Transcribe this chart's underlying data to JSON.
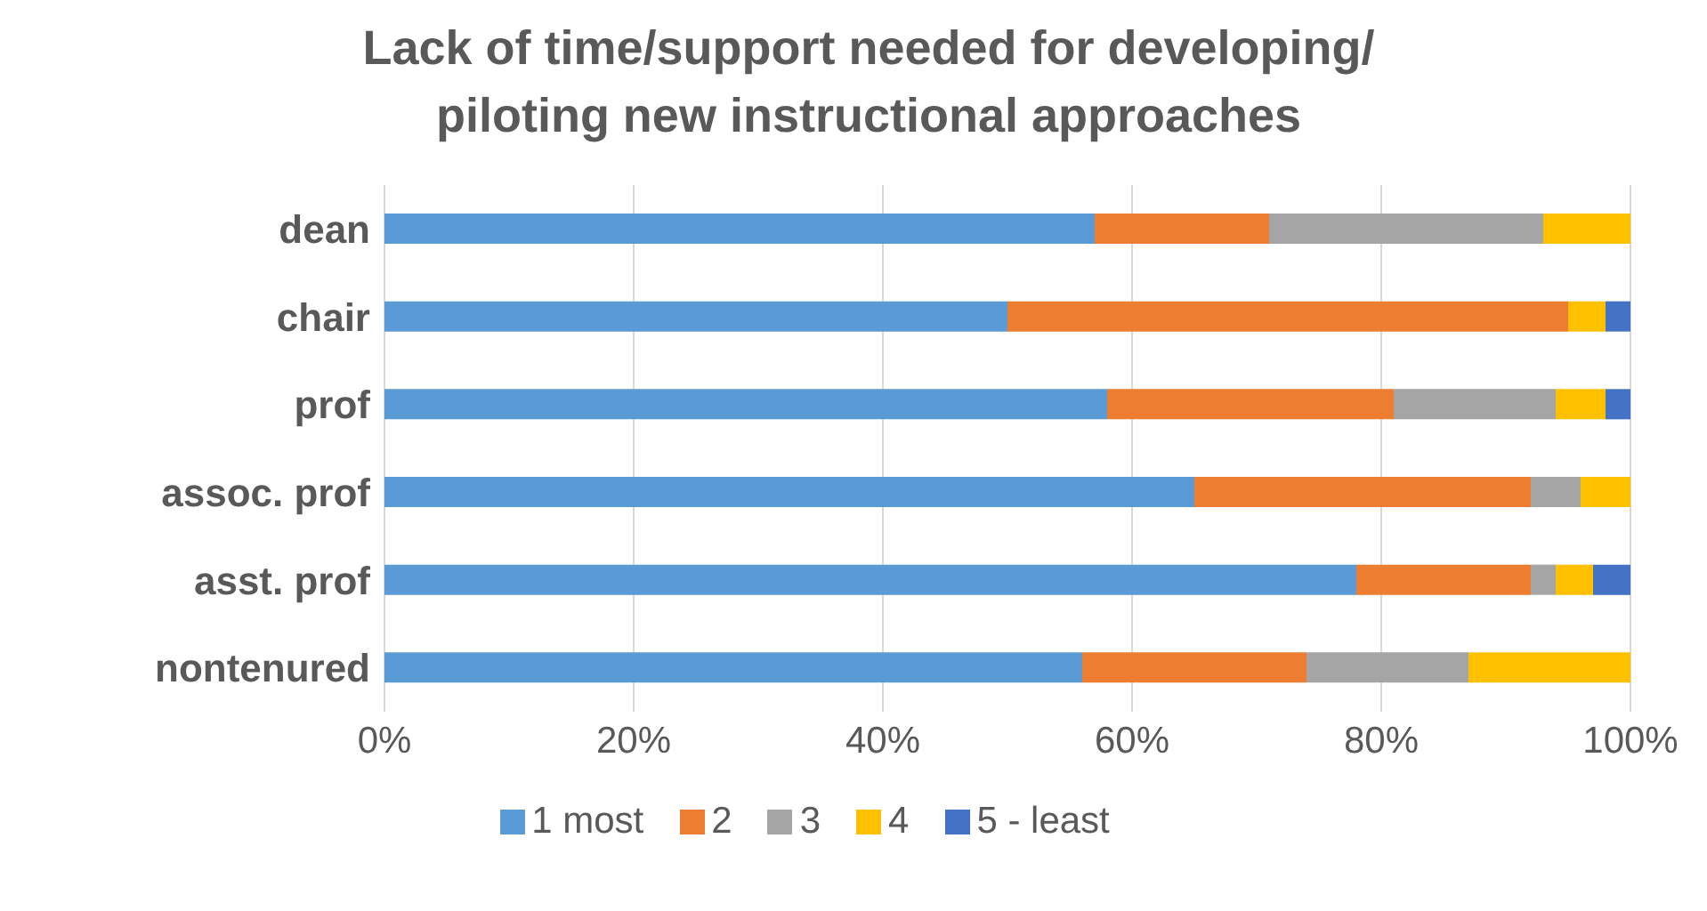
{
  "chart_data": {
    "type": "bar",
    "orientation": "horizontal",
    "stacked": true,
    "title": "Lack of time/support needed for developing/ piloting new instructional approaches",
    "categories": [
      "dean",
      "chair",
      "prof",
      "assoc. prof",
      "asst. prof",
      "nontenured"
    ],
    "series": [
      {
        "name": "1 most",
        "color": "#5b9bd5",
        "values": [
          57,
          50,
          58,
          65,
          78,
          56
        ]
      },
      {
        "name": "2",
        "color": "#ed7d31",
        "values": [
          14,
          45,
          23,
          27,
          14,
          18
        ]
      },
      {
        "name": "3",
        "color": "#a5a5a5",
        "values": [
          22,
          0,
          13,
          4,
          2,
          13
        ]
      },
      {
        "name": "4",
        "color": "#ffc000",
        "values": [
          7,
          3,
          4,
          4,
          3,
          13
        ]
      },
      {
        "name": "5 - least",
        "color": "#4472c4",
        "values": [
          0,
          2,
          2,
          0,
          3,
          0
        ]
      }
    ],
    "xlim": [
      0,
      100
    ],
    "xticks": [
      {
        "value": 0,
        "label": "0%"
      },
      {
        "value": 20,
        "label": "20%"
      },
      {
        "value": 40,
        "label": "40%"
      },
      {
        "value": 60,
        "label": "60%"
      },
      {
        "value": 80,
        "label": "80%"
      },
      {
        "value": 100,
        "label": "100%"
      }
    ],
    "grid": "x",
    "legend": "bottom"
  }
}
